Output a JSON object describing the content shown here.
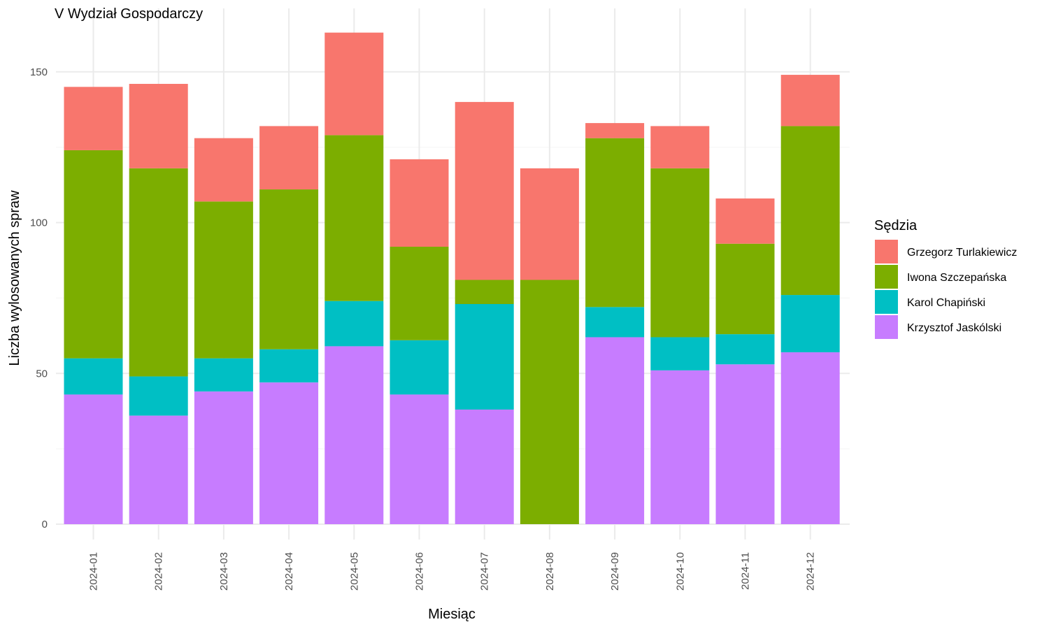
{
  "chart_data": {
    "type": "bar",
    "stacked": true,
    "title": "V Wydział Gospodarczy",
    "xlabel": "Miesiąc",
    "ylabel": "Liczba wylosowanych spraw",
    "ylim": [
      0,
      170
    ],
    "yticks": [
      0,
      50,
      100,
      150
    ],
    "grid": true,
    "legend_title": "Sędzia",
    "legend_position": "right",
    "categories": [
      "2024-01",
      "2024-02",
      "2024-03",
      "2024-04",
      "2024-05",
      "2024-06",
      "2024-07",
      "2024-08",
      "2024-09",
      "2024-10",
      "2024-11",
      "2024-12"
    ],
    "series": [
      {
        "name": "Grzegorz Turlakiewicz",
        "color": "#F8766D",
        "values": [
          21,
          28,
          21,
          21,
          34,
          29,
          59,
          37,
          5,
          14,
          15,
          17
        ]
      },
      {
        "name": "Iwona Szczepańska",
        "color": "#7CAE00",
        "values": [
          69,
          69,
          52,
          53,
          55,
          31,
          8,
          81,
          56,
          56,
          30,
          56
        ]
      },
      {
        "name": "Karol Chapiński",
        "color": "#00BFC4",
        "values": [
          12,
          13,
          11,
          11,
          15,
          18,
          35,
          0,
          10,
          11,
          10,
          19
        ]
      },
      {
        "name": "Krzysztof Jaskólski",
        "color": "#C77CFF",
        "values": [
          43,
          36,
          44,
          47,
          59,
          43,
          38,
          0,
          62,
          51,
          53,
          57
        ]
      }
    ],
    "stack_order_bottom_to_top": [
      "Krzysztof Jaskólski",
      "Karol Chapiński",
      "Iwona Szczepańska",
      "Grzegorz Turlakiewicz"
    ]
  }
}
